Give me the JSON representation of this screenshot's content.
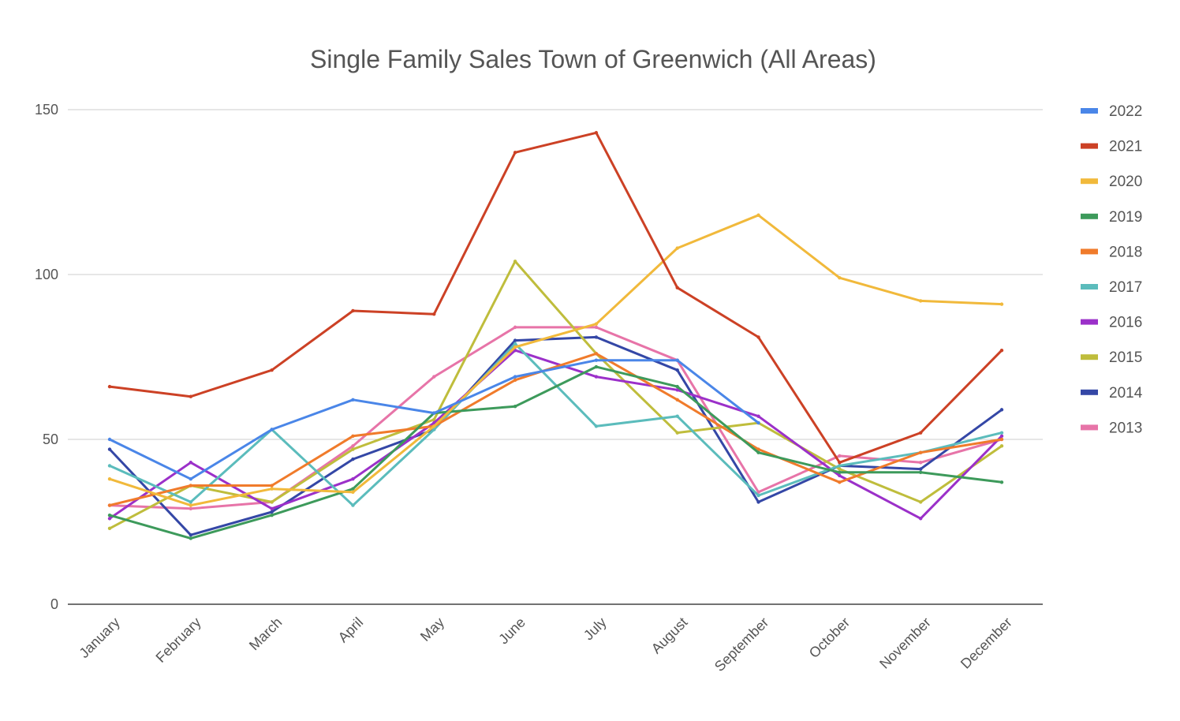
{
  "chart_data": {
    "type": "line",
    "title": "Single Family Sales Town of Greenwich (All Areas)",
    "xlabel": "",
    "ylabel": "",
    "ylim": [
      0,
      150
    ],
    "yticks": [
      "0",
      "50",
      "100",
      "150"
    ],
    "grid": true,
    "legend_position": "right",
    "categories": [
      "January",
      "February",
      "March",
      "April",
      "May",
      "June",
      "July",
      "August",
      "September",
      "October",
      "November",
      "December"
    ],
    "series": [
      {
        "name": "2022",
        "color": "#4a86e8",
        "values": [
          50,
          38,
          53,
          62,
          58,
          69,
          74,
          74,
          55,
          null,
          null,
          null
        ]
      },
      {
        "name": "2021",
        "color": "#cc4125",
        "values": [
          66,
          63,
          71,
          89,
          88,
          137,
          143,
          96,
          81,
          43,
          52,
          77
        ]
      },
      {
        "name": "2020",
        "color": "#f1b93b",
        "values": [
          38,
          30,
          35,
          34,
          54,
          78,
          85,
          108,
          118,
          99,
          92,
          91
        ]
      },
      {
        "name": "2019",
        "color": "#3d9a5b",
        "values": [
          27,
          20,
          27,
          35,
          58,
          60,
          72,
          66,
          46,
          40,
          40,
          37
        ]
      },
      {
        "name": "2018",
        "color": "#f07b2b",
        "values": [
          30,
          36,
          36,
          51,
          54,
          68,
          76,
          62,
          47,
          37,
          46,
          50
        ]
      },
      {
        "name": "2017",
        "color": "#5bbcbc",
        "values": [
          42,
          31,
          53,
          30,
          53,
          79,
          54,
          57,
          33,
          42,
          46,
          52
        ]
      },
      {
        "name": "2016",
        "color": "#9b30c9",
        "values": [
          26,
          43,
          29,
          38,
          55,
          77,
          69,
          65,
          57,
          39,
          26,
          51
        ]
      },
      {
        "name": "2015",
        "color": "#bfbd3c",
        "values": [
          23,
          36,
          31,
          47,
          56,
          104,
          76,
          52,
          55,
          41,
          31,
          48
        ]
      },
      {
        "name": "2014",
        "color": "#3447a6",
        "values": [
          47,
          21,
          28,
          44,
          53,
          80,
          81,
          71,
          31,
          42,
          41,
          59
        ]
      },
      {
        "name": "2013",
        "color": "#e774a8",
        "values": [
          30,
          29,
          31,
          48,
          69,
          84,
          84,
          74,
          34,
          45,
          43,
          50
        ]
      }
    ]
  }
}
